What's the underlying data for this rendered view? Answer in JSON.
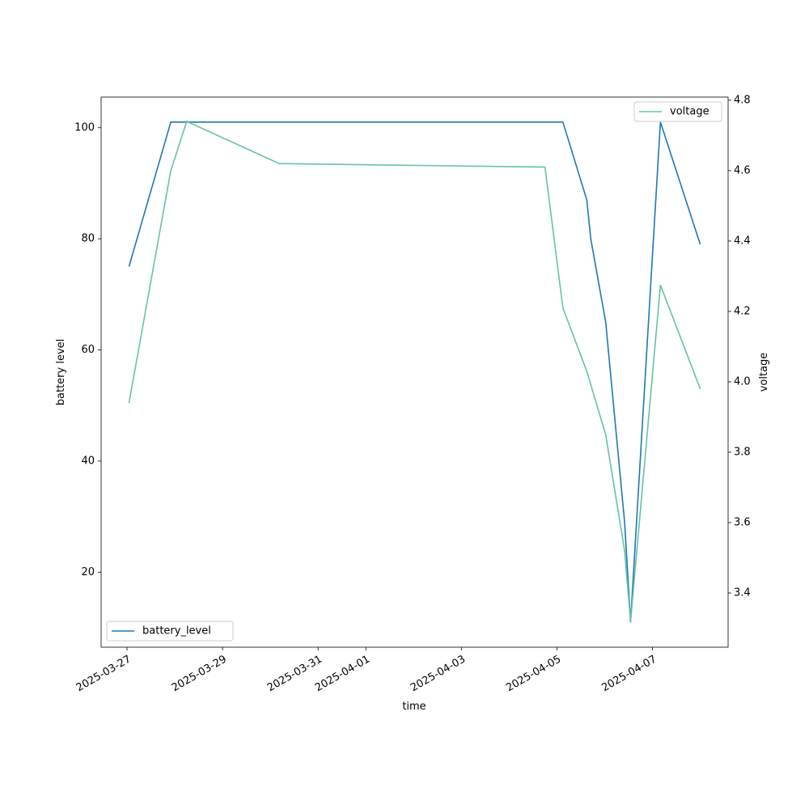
{
  "chart_data": {
    "type": "line",
    "xlabel": "time",
    "ylabel": "battery level",
    "y2label": "voltage",
    "xlim": [
      "2025-03-26T11:00",
      "2025-04-08T14:00"
    ],
    "xticks": [
      "2025-03-27",
      "2025-03-29",
      "2025-03-31",
      "2025-04-01",
      "2025-04-03",
      "2025-04-05",
      "2025-04-07"
    ],
    "ylim": [
      6.5,
      105.5
    ],
    "yticks": [
      20,
      40,
      60,
      80,
      100
    ],
    "y2lim": [
      3.246,
      4.809
    ],
    "y2ticks": [
      3.4,
      3.6,
      3.8,
      {
        "value": 4,
        "label": "4.0"
      },
      4.2,
      4.4,
      4.6,
      4.8
    ],
    "series": [
      {
        "name": "battery_level",
        "color": "#1f77b4",
        "axis": "y",
        "legend": "lower left",
        "x": [
          "2025-03-27T01:00",
          "2025-03-27T22:00",
          "2025-04-05T03:00",
          "2025-04-05T15:00",
          "2025-04-05T17:00",
          "2025-04-06T00:30",
          "2025-04-06T10:00",
          "2025-04-06T13:00",
          "2025-04-07T04:00",
          "2025-04-08T00:00"
        ],
        "values": [
          75,
          101,
          101,
          87,
          80,
          65,
          29,
          11,
          101,
          79
        ]
      },
      {
        "name": "voltage",
        "color": "#66c2a5",
        "axis": "y2",
        "legend": "upper right",
        "x": [
          "2025-03-27T01:00",
          "2025-03-27T22:00",
          "2025-03-28T06:00",
          "2025-03-30T04:30",
          "2025-04-04T18:00",
          "2025-04-05T03:00",
          "2025-04-05T15:00",
          "2025-04-06T00:30",
          "2025-04-06T10:00",
          "2025-04-06T13:00",
          "2025-04-07T04:00",
          "2025-04-08T00:00"
        ],
        "values": [
          3.94,
          4.6,
          4.74,
          4.62,
          4.61,
          4.21,
          4.03,
          3.85,
          3.52,
          3.32,
          4.275,
          3.98
        ]
      }
    ]
  }
}
